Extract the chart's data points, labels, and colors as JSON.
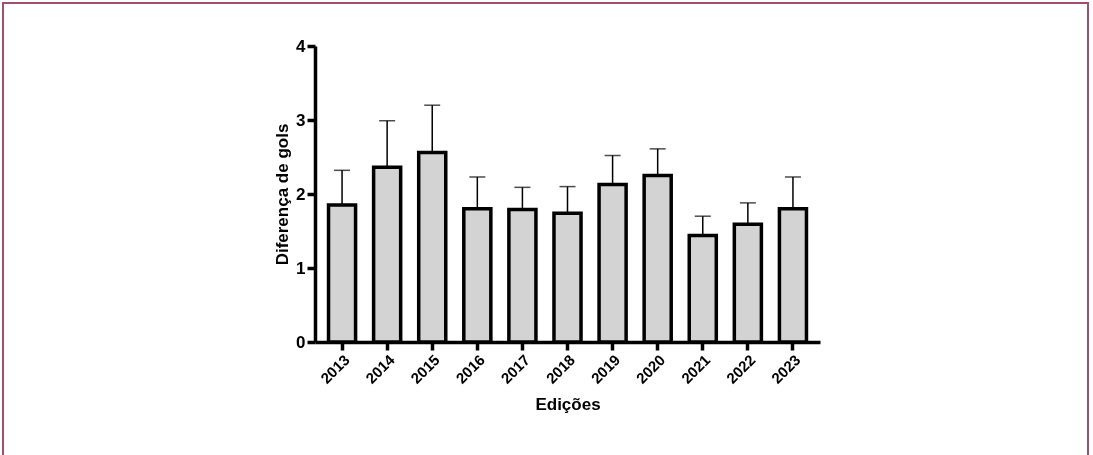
{
  "chart_data": {
    "type": "bar",
    "xlabel": "Edições",
    "ylabel": "Diferença de gols",
    "categories": [
      "2013",
      "2014",
      "2015",
      "2016",
      "2017",
      "2018",
      "2019",
      "2020",
      "2021",
      "2022",
      "2023"
    ],
    "values": [
      1.85,
      2.36,
      2.56,
      1.8,
      1.79,
      1.74,
      2.13,
      2.25,
      1.44,
      1.59,
      1.8
    ],
    "errors": [
      [
        1.85,
        2.32
      ],
      [
        2.36,
        2.99
      ],
      [
        2.56,
        3.2
      ],
      [
        1.8,
        2.23
      ],
      [
        1.79,
        2.09
      ],
      [
        1.74,
        2.1
      ],
      [
        2.13,
        2.52
      ],
      [
        2.25,
        2.61
      ],
      [
        1.44,
        1.7
      ],
      [
        1.59,
        1.88
      ],
      [
        1.8,
        2.23
      ]
    ],
    "color": "#d3d3d3",
    "ylim": [
      0,
      4
    ],
    "yticks": [
      0,
      1,
      2,
      3,
      4
    ],
    "grid": false
  }
}
